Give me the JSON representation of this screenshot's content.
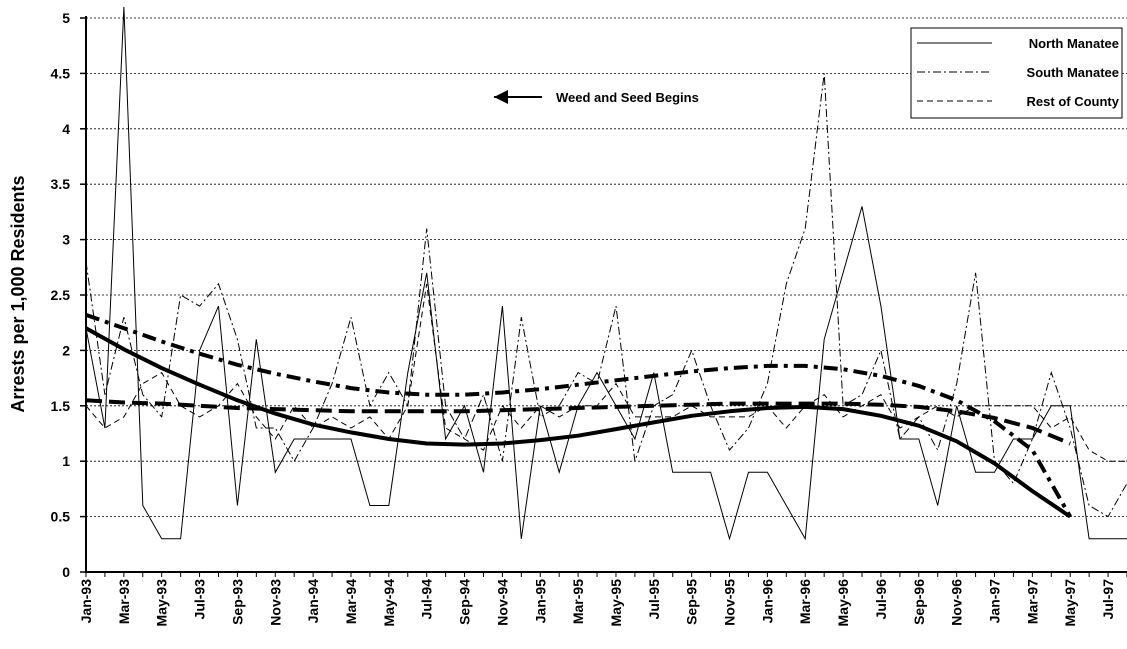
{
  "chart_data": {
    "type": "line",
    "title": "",
    "xlabel": "",
    "ylabel": "Arrests per 1,000 Residents",
    "ylim": [
      0,
      5
    ],
    "yticks": [
      "0",
      "0.5",
      "1",
      "1.5",
      "2",
      "2.5",
      "3",
      "3.5",
      "4",
      "4.5",
      "5"
    ],
    "grid": true,
    "legend_position": "top-right",
    "x": [
      "Jan-93",
      "Feb-93",
      "Mar-93",
      "Apr-93",
      "May-93",
      "Jun-93",
      "Jul-93",
      "Aug-93",
      "Sep-93",
      "Oct-93",
      "Nov-93",
      "Dec-93",
      "Jan-94",
      "Feb-94",
      "Mar-94",
      "Apr-94",
      "May-94",
      "Jun-94",
      "Jul-94",
      "Aug-94",
      "Sep-94",
      "Oct-94",
      "Nov-94",
      "Dec-94",
      "Jan-95",
      "Feb-95",
      "Mar-95",
      "Apr-95",
      "May-95",
      "Jun-95",
      "Jul-95",
      "Aug-95",
      "Sep-95",
      "Oct-95",
      "Nov-95",
      "Dec-95",
      "Jan-96",
      "Feb-96",
      "Mar-96",
      "Apr-96",
      "May-96",
      "Jun-96",
      "Jul-96",
      "Aug-96",
      "Sep-96",
      "Oct-96",
      "Nov-96",
      "Dec-96",
      "Jan-97",
      "Feb-97",
      "Mar-97",
      "Apr-97",
      "May-97",
      "Jun-97",
      "Jul-97",
      "Aug-97"
    ],
    "xtick_labels": [
      "Jan-93",
      "Mar-93",
      "May-93",
      "Jul-93",
      "Sep-93",
      "Nov-93",
      "Jan-94",
      "Mar-94",
      "May-94",
      "Jul-94",
      "Sep-94",
      "Nov-94",
      "Jan-95",
      "Mar-95",
      "May-95",
      "Jul-95",
      "Sep-95",
      "Nov-95",
      "Jan-96",
      "Mar-96",
      "May-96",
      "Jul-96",
      "Sep-96",
      "Nov-96",
      "Jan-97",
      "Mar-97",
      "May-97",
      "Jul-97"
    ],
    "series": [
      {
        "name": "North Manatee",
        "style": "thin-solid",
        "values": [
          2.2,
          1.3,
          5.1,
          0.6,
          0.3,
          0.3,
          2.0,
          2.4,
          0.6,
          2.1,
          0.9,
          1.2,
          1.2,
          1.2,
          1.2,
          0.6,
          0.6,
          1.8,
          2.7,
          1.2,
          1.5,
          0.9,
          2.4,
          0.3,
          1.5,
          0.9,
          1.5,
          1.8,
          1.5,
          1.2,
          1.8,
          0.9,
          0.9,
          0.9,
          0.3,
          0.9,
          0.9,
          0.6,
          0.3,
          2.1,
          2.7,
          3.3,
          2.4,
          1.2,
          1.2,
          0.6,
          1.5,
          0.9,
          0.9,
          1.2,
          1.2,
          1.5,
          1.5,
          0.3,
          0.3,
          0.3
        ]
      },
      {
        "name": "South Manatee",
        "style": "thin-dash-dot",
        "values": [
          2.8,
          1.6,
          2.3,
          1.6,
          1.4,
          2.5,
          2.4,
          2.6,
          2.1,
          1.3,
          1.3,
          1.0,
          1.3,
          1.7,
          2.3,
          1.5,
          1.8,
          1.5,
          3.1,
          1.5,
          1.2,
          1.6,
          1.0,
          2.3,
          1.4,
          1.5,
          1.8,
          1.7,
          2.4,
          1.0,
          1.5,
          1.6,
          2.0,
          1.5,
          1.1,
          1.3,
          1.7,
          2.6,
          3.1,
          4.5,
          1.5,
          1.6,
          2.0,
          1.2,
          1.4,
          1.1,
          1.7,
          2.7,
          1.0,
          0.8,
          1.2,
          1.8,
          1.3,
          0.6,
          0.5,
          0.8
        ]
      },
      {
        "name": "Rest of County",
        "style": "thin-dashed",
        "values": [
          1.5,
          1.3,
          1.4,
          1.7,
          1.8,
          1.5,
          1.4,
          1.5,
          1.7,
          1.4,
          1.2,
          1.5,
          1.3,
          1.4,
          1.3,
          1.4,
          1.2,
          1.5,
          2.6,
          1.3,
          1.2,
          1.1,
          1.5,
          1.3,
          1.5,
          1.4,
          1.5,
          1.5,
          1.7,
          1.4,
          1.4,
          1.4,
          1.5,
          1.4,
          1.4,
          1.4,
          1.5,
          1.3,
          1.5,
          1.6,
          1.4,
          1.5,
          1.6,
          1.3,
          1.4,
          1.5,
          1.4,
          1.5,
          1.5,
          1.5,
          1.5,
          1.3,
          1.4,
          1.1,
          1.0,
          1.0
        ]
      }
    ],
    "trendlines": [
      {
        "series": "North Manatee",
        "style": "thick-solid",
        "values": [
          2.2,
          2.01,
          1.84,
          1.69,
          1.55,
          1.43,
          1.33,
          1.26,
          1.2,
          1.16,
          1.15,
          1.16,
          1.19,
          1.23,
          1.29,
          1.35,
          1.41,
          1.45,
          1.48,
          1.49,
          1.47,
          1.41,
          1.32,
          1.18,
          0.98,
          0.73,
          0.5
        ]
      },
      {
        "series": "South Manatee",
        "style": "thick-dash-dot",
        "values": [
          2.32,
          2.2,
          2.08,
          1.97,
          1.87,
          1.79,
          1.72,
          1.66,
          1.62,
          1.6,
          1.6,
          1.62,
          1.65,
          1.69,
          1.73,
          1.77,
          1.81,
          1.84,
          1.86,
          1.86,
          1.83,
          1.77,
          1.68,
          1.55,
          1.36,
          1.1,
          0.5
        ]
      },
      {
        "series": "Rest of County",
        "style": "thick-dashed",
        "values": [
          1.55,
          1.53,
          1.52,
          1.5,
          1.48,
          1.47,
          1.46,
          1.45,
          1.45,
          1.45,
          1.45,
          1.46,
          1.47,
          1.48,
          1.49,
          1.5,
          1.51,
          1.52,
          1.52,
          1.52,
          1.52,
          1.51,
          1.49,
          1.45,
          1.39,
          1.3,
          1.16
        ]
      }
    ],
    "annotation": {
      "text": "Weed and Seed Begins",
      "arrow": "left"
    }
  }
}
